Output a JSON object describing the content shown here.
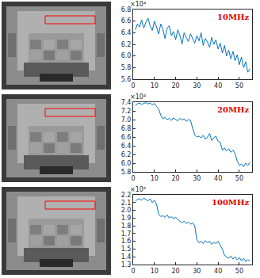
{
  "chart_data": [
    {
      "type": "line",
      "title": "10MHz",
      "annotations": [
        "×10⁴"
      ],
      "color": "#0072bd",
      "x": [
        1,
        2,
        3,
        4,
        5,
        6,
        7,
        8,
        9,
        10,
        11,
        12,
        13,
        14,
        15,
        16,
        17,
        18,
        19,
        20,
        21,
        22,
        23,
        24,
        25,
        26,
        27,
        28,
        29,
        30,
        31,
        32,
        33,
        34,
        35,
        36,
        37,
        38,
        39,
        40,
        41,
        42,
        43,
        44,
        45,
        46,
        47,
        48,
        49,
        50,
        51,
        52,
        53,
        54,
        55
      ],
      "values": [
        6.45,
        6.55,
        6.5,
        6.62,
        6.48,
        6.58,
        6.65,
        6.52,
        6.44,
        6.6,
        6.5,
        6.38,
        6.55,
        6.46,
        6.3,
        6.48,
        6.52,
        6.35,
        6.42,
        6.28,
        6.45,
        6.36,
        6.2,
        6.4,
        6.32,
        6.25,
        6.38,
        6.3,
        6.22,
        6.35,
        6.26,
        6.4,
        6.18,
        6.3,
        6.24,
        6.15,
        6.32,
        6.2,
        6.28,
        6.12,
        6.22,
        6.05,
        6.18,
        6.0,
        6.1,
        5.95,
        6.08,
        5.92,
        6.02,
        5.85,
        5.98,
        5.8,
        5.9,
        5.72,
        5.78
      ],
      "xlim": [
        0,
        56
      ],
      "xticks": [
        0,
        10,
        20,
        30,
        40,
        50
      ],
      "ylim": [
        5.6,
        6.8
      ],
      "yticks": [
        5.6,
        5.8,
        {
          "value": 6,
          "label": "6.0"
        },
        6.2,
        6.4,
        6.6,
        6.8
      ],
      "grid": false
    },
    {
      "type": "line",
      "title": "20MHz",
      "annotations": [
        "×10⁴"
      ],
      "color": "#0072bd",
      "x": [
        1,
        2,
        3,
        4,
        5,
        6,
        7,
        8,
        9,
        10,
        11,
        12,
        13,
        14,
        15,
        16,
        17,
        18,
        19,
        20,
        21,
        22,
        23,
        24,
        25,
        26,
        27,
        28,
        29,
        30,
        31,
        32,
        33,
        34,
        35,
        36,
        37,
        38,
        39,
        40,
        41,
        42,
        43,
        44,
        45,
        46,
        47,
        48,
        49,
        50,
        51,
        52,
        53,
        54,
        55
      ],
      "values": [
        7.32,
        7.36,
        7.38,
        7.35,
        7.37,
        7.39,
        7.36,
        7.38,
        7.34,
        7.37,
        7.3,
        7.25,
        7.1,
        7.02,
        7.05,
        7.0,
        7.03,
        6.98,
        7.04,
        7.01,
        6.97,
        7.03,
        6.99,
        7.02,
        6.96,
        7.0,
        6.98,
        6.8,
        6.65,
        6.6,
        6.62,
        6.58,
        6.64,
        6.55,
        6.6,
        6.68,
        6.52,
        6.58,
        6.62,
        6.5,
        6.48,
        6.3,
        6.35,
        6.28,
        6.33,
        6.25,
        6.3,
        6.22,
        6.05,
        5.95,
        5.98,
        5.92,
        6.0,
        5.95,
        6.02
      ],
      "xlim": [
        0,
        56
      ],
      "xticks": [
        0,
        10,
        20,
        30,
        40,
        50
      ],
      "ylim": [
        5.8,
        7.4
      ],
      "yticks": [
        5.8,
        {
          "value": 6,
          "label": "6.0"
        },
        6.2,
        6.4,
        6.6,
        6.8,
        {
          "value": 7,
          "label": "7.0"
        },
        7.2,
        7.4
      ],
      "grid": false
    },
    {
      "type": "line",
      "title": "100MHz",
      "annotations": [
        "×10⁵"
      ],
      "color": "#0072bd",
      "x": [
        1,
        2,
        3,
        4,
        5,
        6,
        7,
        8,
        9,
        10,
        11,
        12,
        13,
        14,
        15,
        16,
        17,
        18,
        19,
        20,
        21,
        22,
        23,
        24,
        25,
        26,
        27,
        28,
        29,
        30,
        31,
        32,
        33,
        34,
        35,
        36,
        37,
        38,
        39,
        40,
        41,
        42,
        43,
        44,
        45,
        46,
        47,
        48,
        49,
        50,
        51,
        52,
        53,
        54,
        55
      ],
      "values": [
        2.12,
        2.14,
        2.15,
        2.13,
        2.16,
        2.14,
        2.12,
        2.15,
        2.1,
        2.13,
        2.08,
        1.95,
        1.92,
        1.93,
        1.91,
        1.94,
        1.9,
        1.92,
        1.89,
        1.91,
        1.88,
        1.86,
        1.84,
        1.86,
        1.83,
        1.85,
        1.82,
        1.84,
        1.8,
        1.62,
        1.58,
        1.6,
        1.57,
        1.61,
        1.58,
        1.6,
        1.56,
        1.59,
        1.57,
        1.6,
        1.55,
        1.5,
        1.42,
        1.4,
        1.38,
        1.41,
        1.37,
        1.4,
        1.36,
        1.39,
        1.35,
        1.38,
        1.34,
        1.36,
        1.35
      ],
      "xlim": [
        0,
        56
      ],
      "xticks": [
        0,
        10,
        20,
        30,
        40,
        50
      ],
      "ylim": [
        1.3,
        2.2
      ],
      "yticks": [
        1.3,
        1.4,
        1.5,
        1.6,
        1.7,
        1.8,
        1.9,
        {
          "value": 2,
          "label": "2.0"
        },
        2.1,
        2.2
      ],
      "grid": false
    }
  ]
}
